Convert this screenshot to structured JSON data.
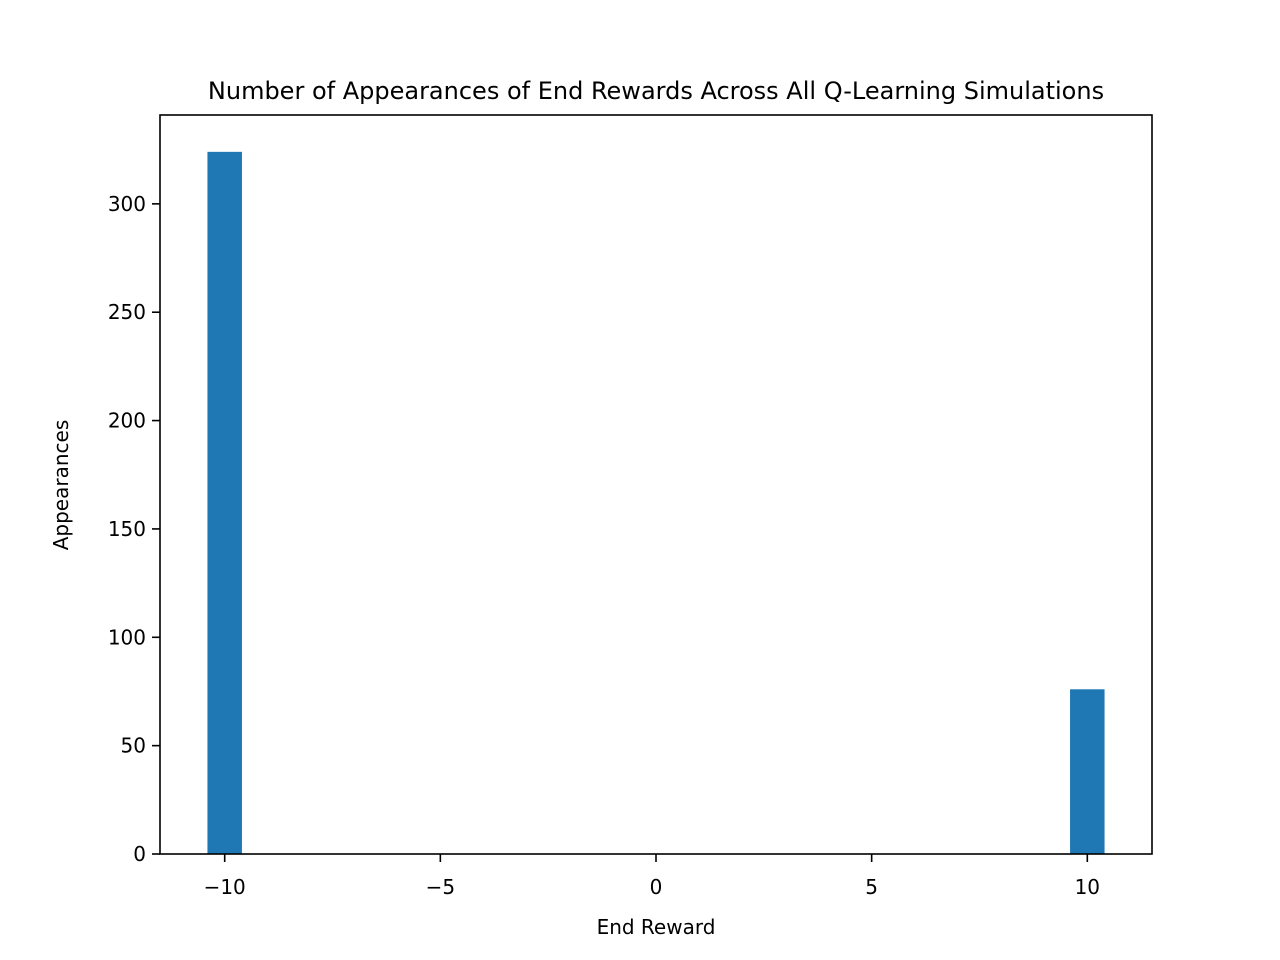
{
  "chart_data": {
    "type": "bar",
    "title": "Number of Appearances of End Rewards Across All Q-Learning Simulations",
    "xlabel": "End Reward",
    "ylabel": "Appearances",
    "xlim": [
      -11.5,
      11.5
    ],
    "ylim": [
      0,
      341
    ],
    "x_ticks": [
      -10,
      -5,
      0,
      5,
      10
    ],
    "x_tick_labels": [
      "−10",
      "−5",
      "0",
      "5",
      "10"
    ],
    "y_ticks": [
      0,
      50,
      100,
      150,
      200,
      250,
      300
    ],
    "y_tick_labels": [
      "0",
      "50",
      "100",
      "150",
      "200",
      "250",
      "300"
    ],
    "bars": [
      {
        "x_start": -10.4,
        "x_end": -9.6,
        "value": 324
      },
      {
        "x_start": 9.6,
        "x_end": 10.4,
        "value": 76
      }
    ],
    "bar_color": "#1f77b4",
    "grid": false,
    "legend": false
  }
}
